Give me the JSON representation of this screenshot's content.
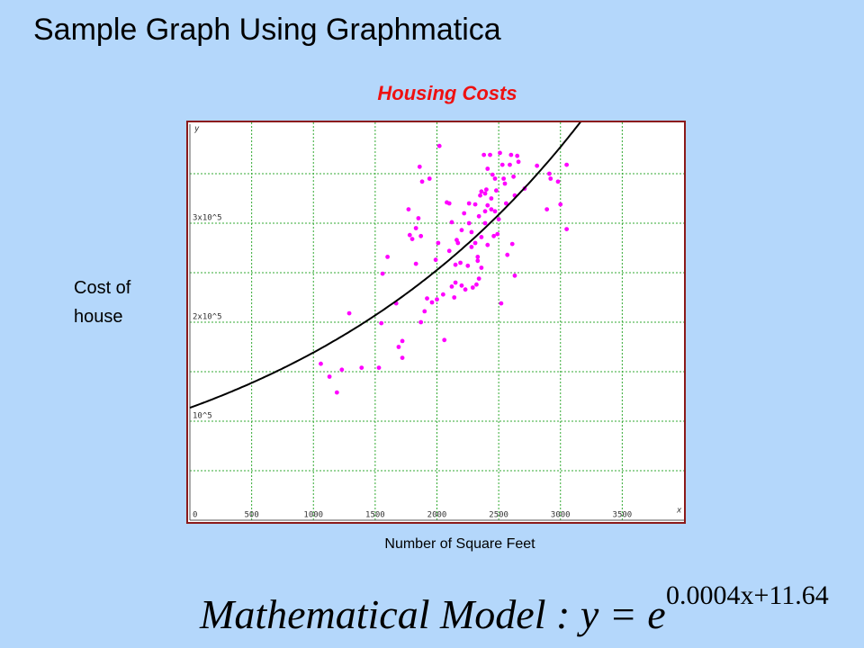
{
  "title": "Sample Graph Using Graphmatica",
  "chart_data": {
    "type": "scatter",
    "title": "Housing Costs",
    "x_label": "Number of Square Feet",
    "y_label": "Cost of house",
    "x_var": "x",
    "y_var": "y",
    "xlim": [
      0,
      4000
    ],
    "ylim": [
      0,
      400000
    ],
    "xticks": [
      500,
      1000,
      1500,
      2000,
      2500,
      3000,
      3500
    ],
    "yticks": [
      {
        "value": 0,
        "label": "0"
      },
      {
        "value": 100000,
        "label": "10^5"
      },
      {
        "value": 200000,
        "label": "2x10^5"
      },
      {
        "value": 300000,
        "label": "3x10^5"
      }
    ],
    "ygrid": [
      50000,
      100000,
      150000,
      200000,
      250000,
      300000,
      350000
    ],
    "grid": true,
    "color": "#ff00ff",
    "curve_color": "#000000",
    "x": [
      1060,
      1130,
      1190,
      1230,
      1290,
      1390,
      1530,
      1550,
      1560,
      1600,
      1670,
      1690,
      1720,
      1720,
      1770,
      1780,
      1800,
      1830,
      1830,
      1850,
      1860,
      1870,
      1870,
      1880,
      1900,
      1920,
      1940,
      1960,
      1990,
      2000,
      2010,
      2020,
      2050,
      2060,
      2080,
      2100,
      2100,
      2120,
      2120,
      2140,
      2150,
      2150,
      2160,
      2170,
      2190,
      2200,
      2200,
      2220,
      2230,
      2250,
      2260,
      2260,
      2280,
      2280,
      2290,
      2310,
      2310,
      2320,
      2330,
      2330,
      2340,
      2340,
      2350,
      2360,
      2360,
      2360,
      2380,
      2390,
      2390,
      2390,
      2400,
      2410,
      2410,
      2410,
      2430,
      2440,
      2440,
      2450,
      2460,
      2470,
      2470,
      2480,
      2490,
      2500,
      2510,
      2520,
      2530,
      2540,
      2550,
      2560,
      2570,
      2590,
      2600,
      2610,
      2620,
      2630,
      2630,
      2650,
      2660,
      2710,
      2810,
      2890,
      2910,
      2920,
      2980,
      3000,
      3050,
      3050
    ],
    "values": [
      158000,
      145000,
      129000,
      152000,
      209000,
      154000,
      154000,
      199000,
      249000,
      266000,
      219000,
      175000,
      181000,
      164000,
      314000,
      288000,
      284000,
      259000,
      295000,
      305000,
      357000,
      287000,
      200000,
      342000,
      211000,
      224000,
      345000,
      220000,
      263000,
      223000,
      280000,
      378000,
      228000,
      182000,
      321000,
      320000,
      272000,
      301000,
      236000,
      225000,
      240000,
      258000,
      283000,
      280000,
      260000,
      293000,
      237000,
      310000,
      233000,
      257000,
      320000,
      300000,
      291000,
      276000,
      235000,
      319000,
      280000,
      238000,
      266000,
      262000,
      307000,
      244000,
      328000,
      286000,
      255000,
      332000,
      369000,
      300000,
      312000,
      330000,
      334000,
      318000,
      278000,
      355000,
      369000,
      314000,
      325000,
      349000,
      287000,
      345000,
      312000,
      333000,
      289000,
      304000,
      371000,
      219000,
      359000,
      345000,
      340000,
      320000,
      268000,
      359000,
      369000,
      279000,
      347000,
      247000,
      328000,
      368000,
      362000,
      335000,
      358000,
      314000,
      350000,
      345000,
      342000,
      319000,
      359000,
      294000
    ],
    "model": {
      "a": 0.0004,
      "b": 11.64
    },
    "equation": {
      "lhs": "Mathematical Model : y = e",
      "exponent": "0.0004x+11.64"
    }
  }
}
